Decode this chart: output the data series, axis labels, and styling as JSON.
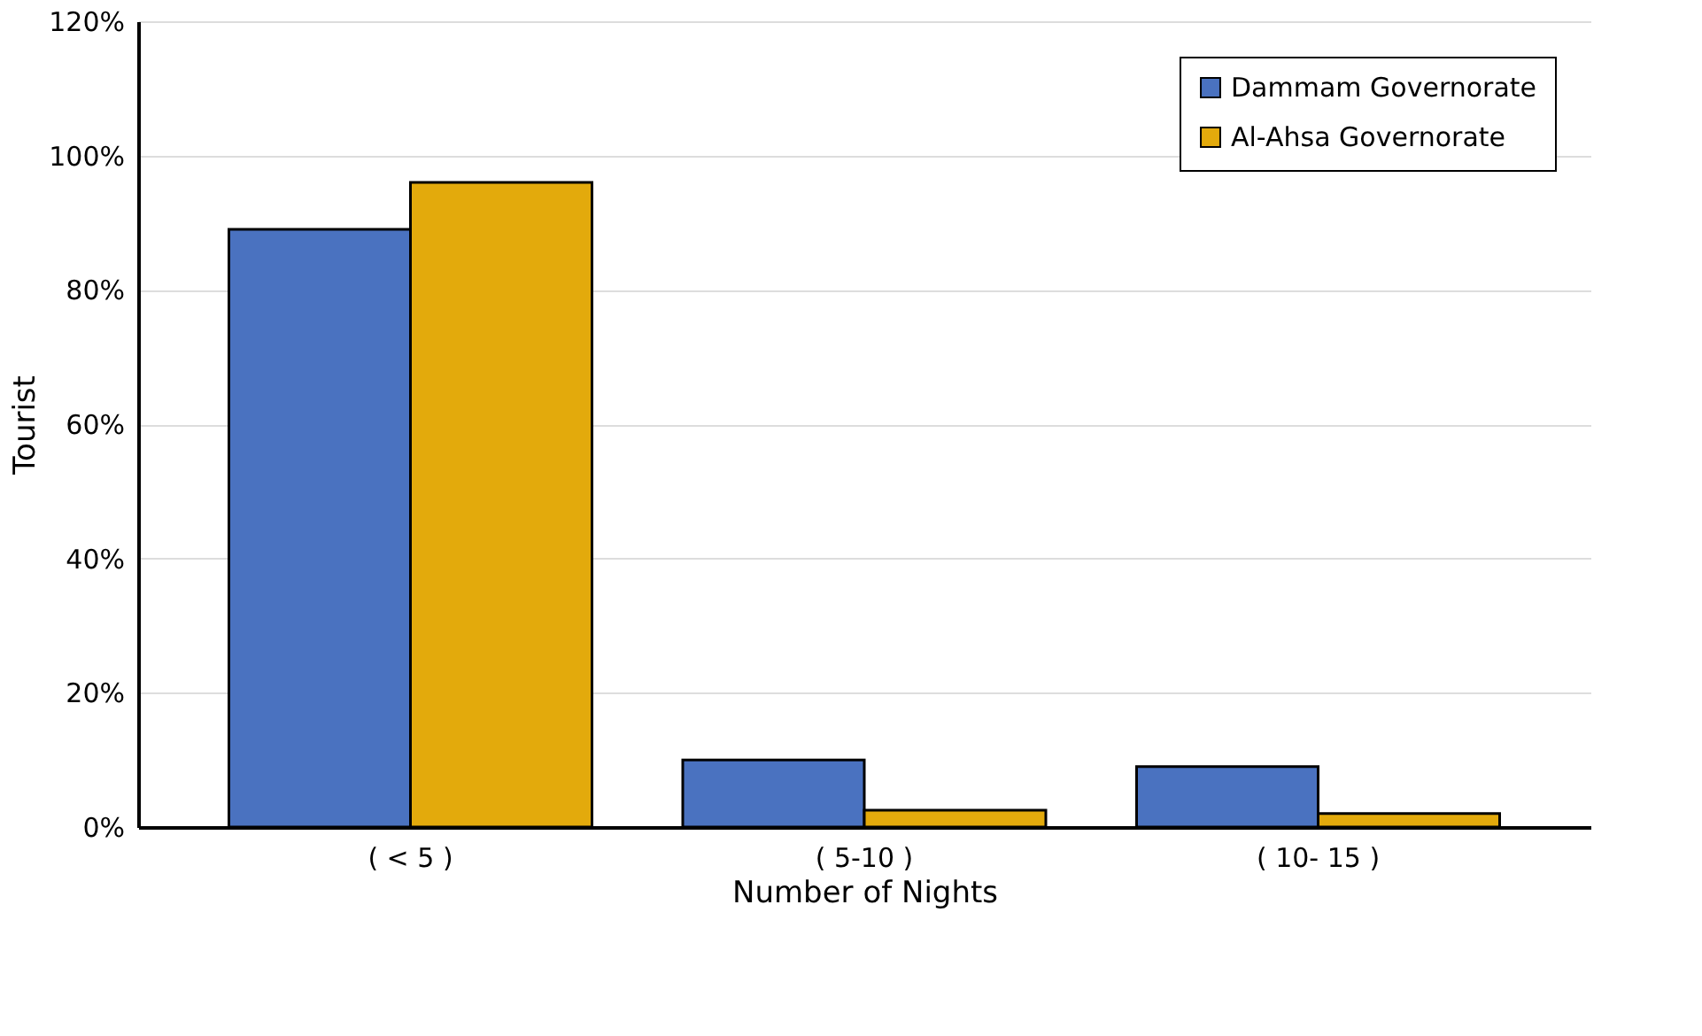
{
  "chart_data": {
    "type": "bar",
    "xlabel": "Number of Nights",
    "ylabel": "Tourist",
    "categories": [
      "( < 5 )",
      "( 5-10 )",
      "( 10- 15 )"
    ],
    "series": [
      {
        "name": "Dammam Governorate",
        "color": "#4a72c0",
        "values": [
          89,
          10,
          9
        ]
      },
      {
        "name": "Al-Ahsa Governorate",
        "color": "#e3aa0c",
        "values": [
          96,
          2.5,
          2
        ]
      }
    ],
    "ylim": [
      0,
      120
    ],
    "yticks": [
      {
        "value": 0,
        "label": "0%"
      },
      {
        "value": 20,
        "label": "20%"
      },
      {
        "value": 40,
        "label": "40%"
      },
      {
        "value": 60,
        "label": "60%"
      },
      {
        "value": 80,
        "label": "80%"
      },
      {
        "value": 100,
        "label": "100%"
      },
      {
        "value": 120,
        "label": "120%"
      }
    ],
    "grid": "y",
    "legend": "top right"
  }
}
